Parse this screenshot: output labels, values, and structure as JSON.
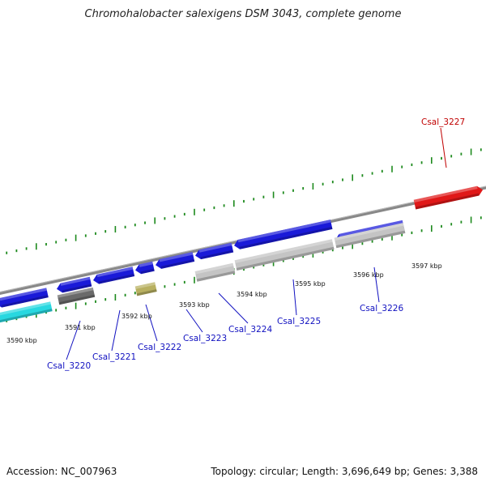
{
  "title": "Chromohalobacter salexigens DSM 3043, complete genome",
  "footer": {
    "accession": "Accession: NC_007963",
    "topology": "Topology: circular; Length: 3,696,649 bp; Genes: 3,388"
  },
  "colors": {
    "forward_cds": "#1a1ad8",
    "reverse_cds": "#2424d0",
    "rna": "#28d8e0",
    "pseudo": "#6a6a6a",
    "gold": "#b8b060",
    "light_gray": "#c4c4c4",
    "red": "#e01818",
    "tick": "#1d8a1d",
    "label_blue": "#1010c0",
    "label_red": "#c00000",
    "backbone": "#888888"
  },
  "scale": {
    "unit": "kbp",
    "ticks": [
      {
        "label": "3590 kbp"
      },
      {
        "label": "3591 kbp"
      },
      {
        "label": "3592 kbp"
      },
      {
        "label": "3593 kbp"
      },
      {
        "label": "3594 kbp"
      },
      {
        "label": "3595 kbp"
      },
      {
        "label": "3596 kbp"
      },
      {
        "label": "3597 kbp"
      }
    ]
  },
  "genes": [
    {
      "name": "Csal_3220",
      "labelled": true,
      "color": "label_blue"
    },
    {
      "name": "Csal_3221",
      "labelled": true,
      "color": "label_blue"
    },
    {
      "name": "Csal_3222",
      "labelled": true,
      "color": "label_blue"
    },
    {
      "name": "Csal_3223",
      "labelled": true,
      "color": "label_blue"
    },
    {
      "name": "Csal_3224",
      "labelled": true,
      "color": "label_blue"
    },
    {
      "name": "Csal_3225",
      "labelled": true,
      "color": "label_blue"
    },
    {
      "name": "Csal_3226",
      "labelled": true,
      "color": "label_blue"
    },
    {
      "name": "Csal_3227",
      "labelled": true,
      "color": "label_red"
    }
  ]
}
